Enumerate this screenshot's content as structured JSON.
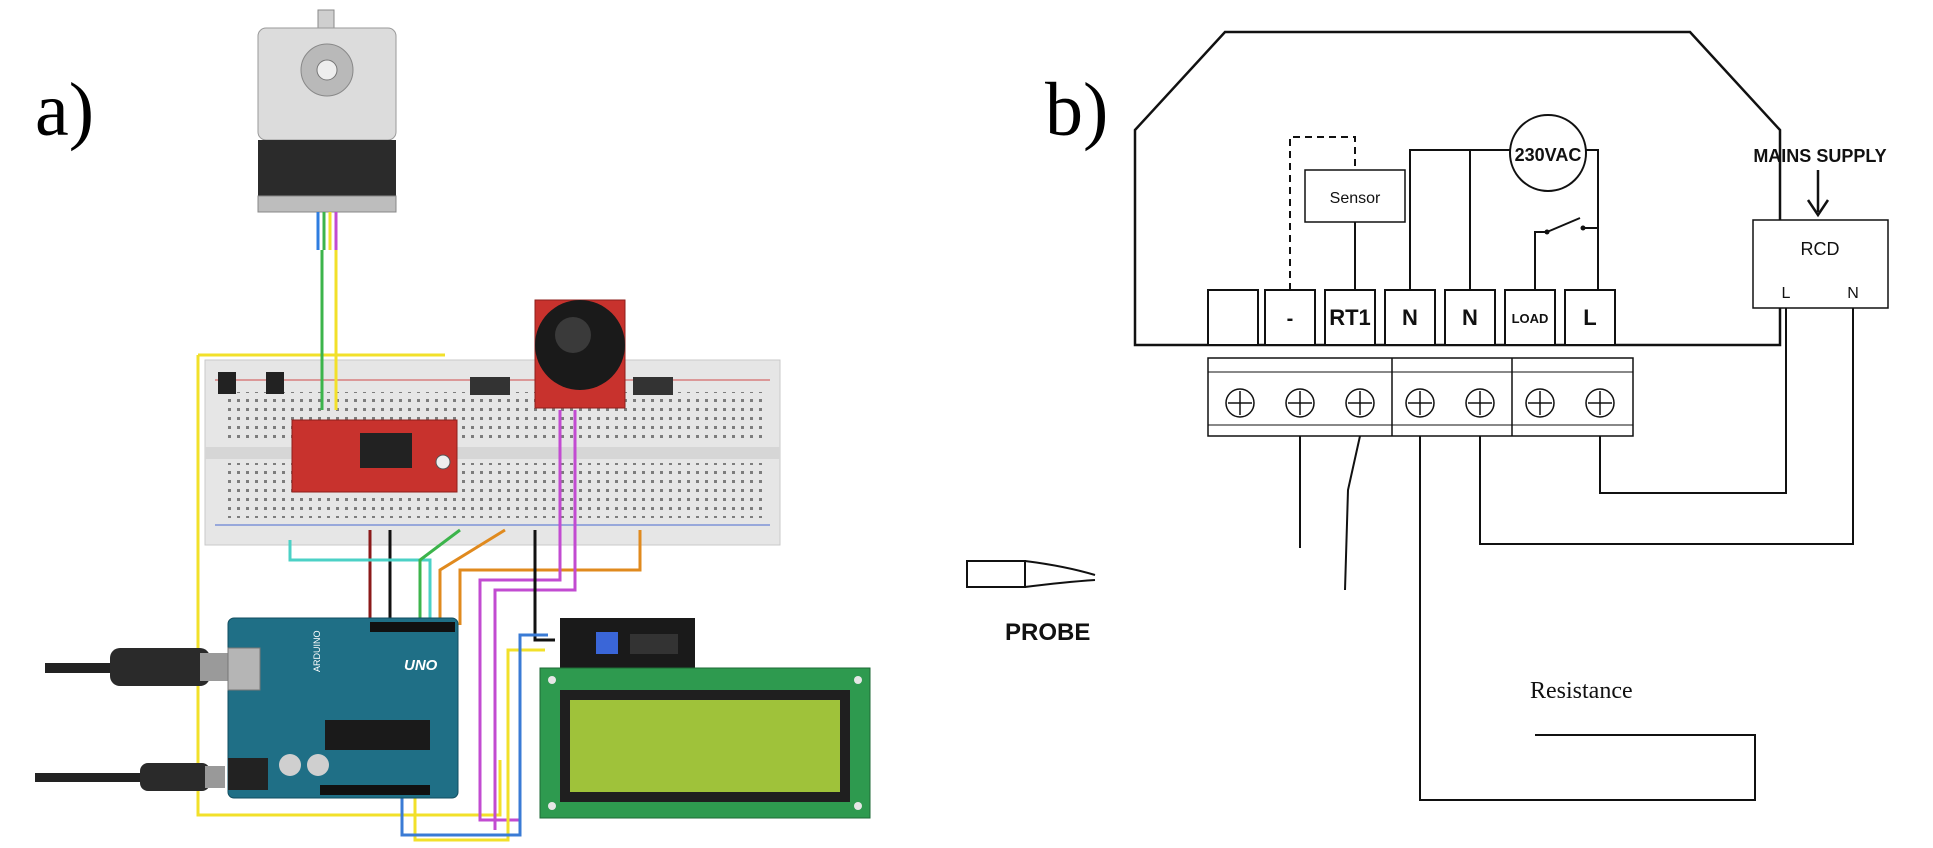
{
  "panels": {
    "a": {
      "label": "a)"
    },
    "b": {
      "label": "b)"
    }
  },
  "arduino": {
    "logo": "UNO",
    "brand": "ARDUINO"
  },
  "wiring": {
    "sensor": "Sensor",
    "supply_voltage": "230VAC",
    "mains_supply": "MAINS SUPPLY",
    "rcd": "RCD",
    "rcd_l": "L",
    "rcd_n": "N",
    "probe": "PROBE",
    "resistance": "Resistance",
    "terminals": [
      "",
      "-",
      "RT1",
      "N",
      "N",
      "LOAD",
      "L"
    ]
  },
  "colors": {
    "board_pcb": "#1f6f86",
    "driver_pcb": "#c8322d",
    "lcd_pcb": "#2e9a4f",
    "lcd_screen": "#9fc23a",
    "breadboard": "#e4e4e4",
    "wire_yellow": "#f2e02a",
    "wire_red": "#8b1a1a",
    "wire_black": "#111111",
    "wire_green": "#3cb44b",
    "wire_orange": "#e08a1e",
    "wire_purple": "#c24bd1",
    "wire_cyan": "#4bd1c6",
    "wire_blue": "#3a7bd5"
  }
}
